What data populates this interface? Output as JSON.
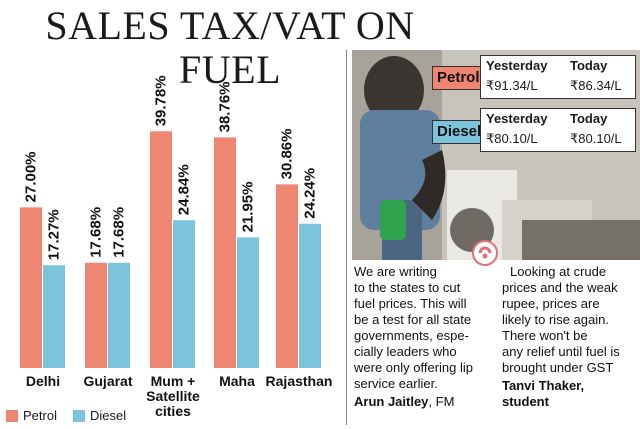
{
  "title": "SALES TAX/VAT ON FUEL",
  "colors": {
    "petrol": "#ee8672",
    "diesel": "#7cc3dc",
    "petrol_tag": "#ee8672",
    "diesel_tag": "#7cc3dc"
  },
  "chart_data": {
    "type": "bar",
    "categories": [
      "Delhi",
      "Gujarat",
      "Mum + Satellite cities",
      "Maha",
      "Rajasthan"
    ],
    "series": [
      {
        "name": "Petrol",
        "values": [
          27.0,
          17.68,
          39.78,
          38.76,
          30.86
        ],
        "labels": [
          "27.00%",
          "17.68%",
          "39.78%",
          "38.76%",
          "30.86%"
        ]
      },
      {
        "name": "Diesel",
        "values": [
          17.27,
          17.68,
          24.84,
          21.95,
          24.24
        ],
        "labels": [
          "17.27%",
          "17.68%",
          "24.84%",
          "21.95%",
          "24.24%"
        ]
      }
    ],
    "ylim": [
      0,
      40
    ],
    "legend": "bottom-left"
  },
  "legend": {
    "petrol": "Petrol",
    "diesel": "Diesel"
  },
  "prices": {
    "petrol": {
      "tag": "Petrol",
      "yesterday_label": "Yesterday",
      "today_label": "Today",
      "yesterday": "₹91.34/L",
      "today": "₹86.34/L"
    },
    "diesel": {
      "tag": "Diesel",
      "yesterday_label": "Yesterday",
      "today_label": "Today",
      "yesterday": "₹80.10/L",
      "today": "₹80.10/L"
    }
  },
  "quotes": {
    "left": {
      "lines": [
        "We are writing",
        "to the states to cut",
        "fuel prices. This will",
        "be a test for all state",
        "governments, espe-",
        "cially leaders who",
        "were only offering lip",
        "service earlier."
      ],
      "author": "Arun Jaitley",
      "role": ", FM"
    },
    "right": {
      "lines": [
        "Looking at crude",
        "prices and the weak",
        "rupee, prices are",
        "likely to rise again.",
        "There won't be",
        "any relief until fuel is",
        "brought under GST"
      ],
      "author": "Tanvi Thaker,",
      "role": "student"
    }
  }
}
